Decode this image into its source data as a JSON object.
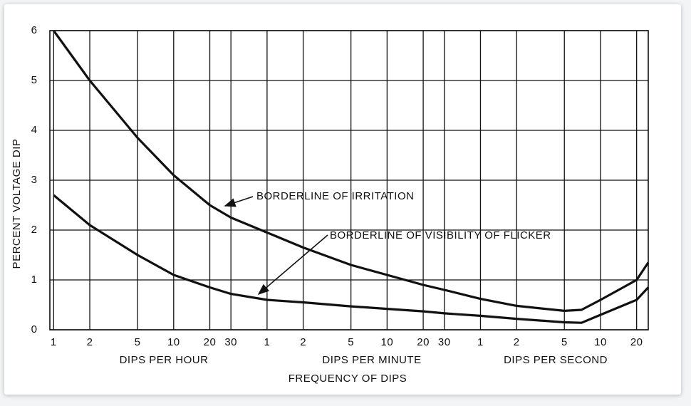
{
  "chart_data": {
    "type": "line",
    "y_label": "PERCENT VOLTAGE DIP",
    "x_label": "FREQUENCY OF DIPS",
    "x_groups": [
      "DIPS PER HOUR",
      "DIPS PER MINUTE",
      "DIPS PER SECOND"
    ],
    "annotations": [
      "BORDERLINE OF IRRITATION",
      "BORDERLINE OF VISIBILITY OF FLICKER"
    ],
    "x_log": true,
    "grid": true,
    "xlim": [
      0.93,
      90000
    ],
    "ylim": [
      0,
      6
    ],
    "yticks": [
      0,
      1,
      2,
      3,
      4,
      5,
      6
    ],
    "xticks": [
      1,
      2,
      5,
      10,
      20,
      30,
      {
        "value": 60,
        "label": "1"
      },
      {
        "value": 120,
        "label": "2"
      },
      {
        "value": 300,
        "label": "5"
      },
      {
        "value": 600,
        "label": "10"
      },
      {
        "value": 1200,
        "label": "20"
      },
      {
        "value": 1800,
        "label": "30"
      },
      {
        "value": 3600,
        "label": "1"
      },
      {
        "value": 7200,
        "label": "2"
      },
      {
        "value": 18000,
        "label": "5"
      },
      {
        "value": 36000,
        "label": "10"
      },
      {
        "value": 72000,
        "label": "20"
      }
    ],
    "x": [
      1,
      2,
      5,
      10,
      20,
      30,
      60,
      120,
      300,
      600,
      1200,
      1800,
      3600,
      7200,
      18000,
      25000,
      36000,
      72000,
      90000
    ],
    "series": [
      {
        "name": "BORDERLINE OF IRRITATION",
        "color": "#111111",
        "values": [
          6,
          5,
          3.85,
          3.1,
          2.5,
          2.25,
          1.95,
          1.65,
          1.3,
          1.1,
          0.9,
          0.8,
          0.62,
          0.48,
          0.38,
          0.4,
          0.6,
          1.0,
          1.35
        ]
      },
      {
        "name": "BORDERLINE OF VISIBILITY OF FLICKER",
        "color": "#111111",
        "values": [
          2.7,
          2.1,
          1.5,
          1.1,
          0.85,
          0.72,
          0.6,
          0.55,
          0.47,
          0.42,
          0.37,
          0.33,
          0.28,
          0.22,
          0.15,
          0.14,
          0.3,
          0.6,
          0.85
        ]
      }
    ]
  }
}
